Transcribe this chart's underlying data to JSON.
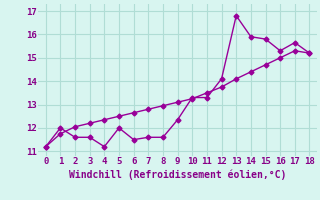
{
  "x_data": [
    0,
    1,
    2,
    3,
    4,
    5,
    6,
    7,
    8,
    9,
    10,
    11,
    12,
    13,
    14,
    15,
    16,
    17,
    18
  ],
  "y_jagged": [
    11.2,
    12.0,
    11.6,
    11.6,
    11.2,
    12.0,
    11.5,
    11.6,
    11.6,
    12.35,
    13.3,
    13.3,
    14.1,
    16.8,
    15.9,
    15.8,
    15.3,
    15.65,
    15.2
  ],
  "y_trend": [
    11.2,
    11.75,
    12.05,
    12.2,
    12.35,
    12.5,
    12.65,
    12.8,
    12.95,
    13.1,
    13.25,
    13.5,
    13.75,
    14.1,
    14.4,
    14.7,
    15.0,
    15.3,
    15.2
  ],
  "line_color": "#990099",
  "bg_color": "#d8f5f0",
  "grid_color": "#b0ddd5",
  "xlabel": "Windchill (Refroidissement éolien,°C)",
  "xlim": [
    -0.5,
    18.5
  ],
  "ylim": [
    10.8,
    17.3
  ],
  "yticks": [
    11,
    12,
    13,
    14,
    15,
    16,
    17
  ],
  "xticks": [
    0,
    1,
    2,
    3,
    4,
    5,
    6,
    7,
    8,
    9,
    10,
    11,
    12,
    13,
    14,
    15,
    16,
    17,
    18
  ],
  "marker": "D",
  "markersize": 2.5,
  "linewidth": 1.0,
  "xlabel_fontsize": 7,
  "tick_fontsize": 6.5,
  "tick_color": "#880088"
}
